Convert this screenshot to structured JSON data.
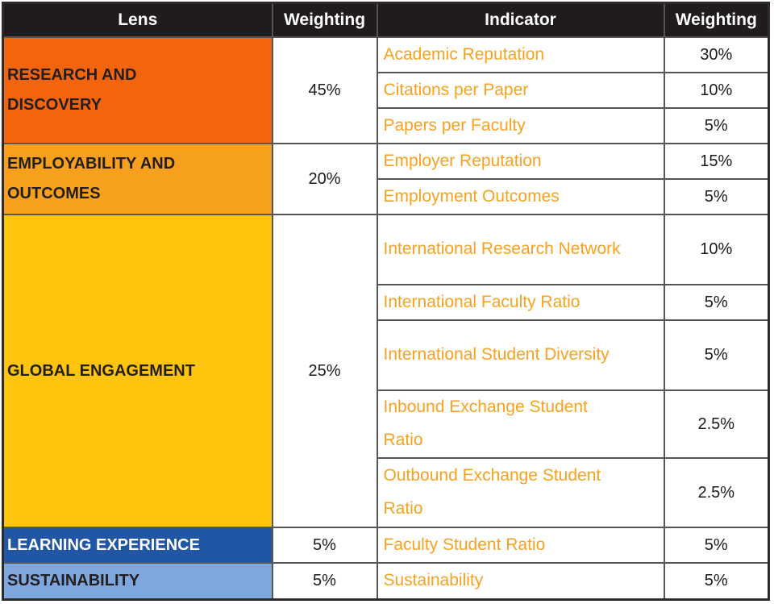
{
  "chart_data": {
    "type": "table",
    "title": "",
    "columns": [
      "Lens",
      "Weighting",
      "Indicator",
      "Weighting"
    ],
    "lenses": [
      {
        "name": "RESEARCH AND DISCOVERY",
        "weighting": "45%",
        "color": "#f2650e",
        "indicators": [
          {
            "name": "Academic Reputation",
            "weighting": "30%"
          },
          {
            "name": "Citations per Paper",
            "weighting": "10%"
          },
          {
            "name": "Papers per Faculty",
            "weighting": "5%"
          }
        ]
      },
      {
        "name": "EMPLOYABILITY AND OUTCOMES",
        "weighting": "20%",
        "color": "#f6a01e",
        "indicators": [
          {
            "name": "Employer Reputation",
            "weighting": "15%"
          },
          {
            "name": "Employment Outcomes",
            "weighting": "5%"
          }
        ]
      },
      {
        "name": "GLOBAL ENGAGEMENT",
        "weighting": "25%",
        "color": "#ffc40d",
        "indicators": [
          {
            "name": "International Research Network",
            "weighting": "10%"
          },
          {
            "name": "International Faculty Ratio",
            "weighting": "5%"
          },
          {
            "name": "International Student Diversity",
            "weighting": "5%"
          },
          {
            "name": "Inbound Exchange Student Ratio",
            "weighting": "2.5%"
          },
          {
            "name": "Outbound Exchange Student Ratio",
            "weighting": "2.5%"
          }
        ]
      },
      {
        "name": "LEARNING EXPERIENCE",
        "weighting": "5%",
        "color": "#2156a4",
        "indicators": [
          {
            "name": "Faculty Student Ratio",
            "weighting": "5%"
          }
        ]
      },
      {
        "name": "SUSTAINABILITY",
        "weighting": "5%",
        "color": "#7fa7df",
        "indicators": [
          {
            "name": "Sustainability",
            "weighting": "5%"
          }
        ]
      }
    ],
    "colors": {
      "header_bg": "#201c1d",
      "header_text": "#ffffff",
      "indicator_text": "#f6a21f",
      "value_text": "#1c1a1b",
      "lens_text_dark": "#231f20",
      "lens_text_light": "#ffffff",
      "grid_line": "#565656"
    }
  }
}
